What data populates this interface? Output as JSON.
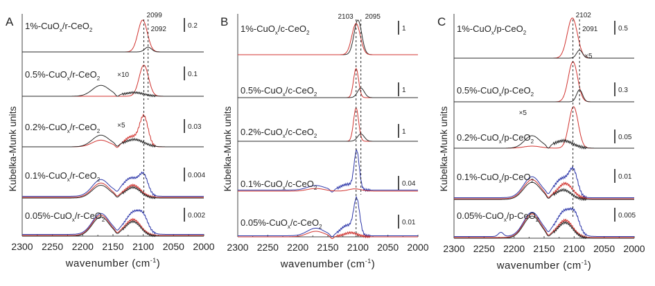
{
  "chart_data": [
    {
      "type": "line",
      "panel": "A",
      "xlabel": "wavenumber (cm⁻¹)",
      "xlabel_base": "wavenumber (cm",
      "xlabel_sup": "-1",
      "xlabel_end": ")",
      "ylabel": "Kubelka-Munk units",
      "xlim": [
        2300,
        2000
      ],
      "xticks": [
        2300,
        2250,
        2200,
        2150,
        2100,
        2050,
        2000
      ],
      "peak_markers": [
        {
          "value": 2099,
          "label": "2099"
        },
        {
          "value": 2092,
          "label": "2092"
        }
      ],
      "colors": {
        "red": "#d0322e",
        "black": "#2a2a2a",
        "blue": "#2b35a8"
      },
      "spectra": [
        {
          "sample": "1%-CuOx/r-CeO2",
          "label_main": "1%-CuO",
          "label_sub": "x",
          "label_mid": "/r-CeO",
          "label_sub2": "2",
          "scale_bar": "0.2",
          "multiplier": "",
          "series": [
            {
              "color": "red",
              "peaks": [
                {
                  "center": 2101,
                  "height": 1.0,
                  "width": 11
                }
              ]
            },
            {
              "color": "black",
              "peaks": [
                {
                  "center": 2092,
                  "height": 0.15,
                  "width": 8
                }
              ]
            }
          ]
        },
        {
          "sample": "0.5%-CuOx/r-CeO2",
          "label_main": "0.5%-CuO",
          "label_sub": "x",
          "label_mid": "/r-CeO",
          "label_sub2": "2",
          "scale_bar": "0.1",
          "multiplier": "×10",
          "series": [
            {
              "color": "red",
              "peaks": [
                {
                  "center": 2099,
                  "height": 1.0,
                  "width": 11
                }
              ]
            },
            {
              "color": "black",
              "peaks": [
                {
                  "center": 2170,
                  "height": 0.35,
                  "width": 20
                },
                {
                  "center": 2115,
                  "height": 0.12,
                  "width": 22
                }
              ]
            }
          ]
        },
        {
          "sample": "0.2%-CuOx/r-CeO2",
          "label_main": "0.2%-CuO",
          "label_sub": "x",
          "label_mid": "/r-CeO",
          "label_sub2": "2",
          "scale_bar": "0.03",
          "multiplier": "×5",
          "series": [
            {
              "color": "red",
              "peaks": [
                {
                  "center": 2170,
                  "height": 0.2,
                  "width": 20
                },
                {
                  "center": 2120,
                  "height": 0.3,
                  "width": 15
                },
                {
                  "center": 2099,
                  "height": 0.9,
                  "width": 10
                }
              ]
            },
            {
              "color": "black",
              "peaks": [
                {
                  "center": 2170,
                  "height": 0.35,
                  "width": 20
                },
                {
                  "center": 2115,
                  "height": 0.22,
                  "width": 22
                }
              ]
            }
          ]
        },
        {
          "sample": "0.1%-CuOx/r-CeO2",
          "label_main": "0.1%-CuO",
          "label_sub": "x",
          "label_mid": "/r-CeO",
          "label_sub2": "2",
          "scale_bar": "0.004",
          "multiplier": "",
          "series": [
            {
              "color": "blue",
              "peaks": [
                {
                  "center": 2170,
                  "height": 0.55,
                  "width": 20
                },
                {
                  "center": 2120,
                  "height": 0.6,
                  "width": 20
                },
                {
                  "center": 2099,
                  "height": 0.55,
                  "width": 10
                }
              ]
            },
            {
              "color": "red",
              "peaks": [
                {
                  "center": 2170,
                  "height": 0.47,
                  "width": 20
                },
                {
                  "center": 2117,
                  "height": 0.4,
                  "width": 18
                }
              ]
            },
            {
              "color": "black",
              "peaks": [
                {
                  "center": 2170,
                  "height": 0.42,
                  "width": 20
                },
                {
                  "center": 2117,
                  "height": 0.35,
                  "width": 18
                }
              ]
            }
          ]
        },
        {
          "sample": "0.05%-CuOx/r-CeO2",
          "label_main": "0.05%-CuO",
          "label_sub": "x",
          "label_mid": "/r-CeO",
          "label_sub2": "2",
          "scale_bar": "0.002",
          "multiplier": "",
          "series": [
            {
              "color": "blue",
              "peaks": [
                {
                  "center": 2170,
                  "height": 0.72,
                  "width": 20
                },
                {
                  "center": 2115,
                  "height": 0.78,
                  "width": 20
                },
                {
                  "center": 2099,
                  "height": 0.3,
                  "width": 10
                }
              ]
            },
            {
              "color": "red",
              "peaks": [
                {
                  "center": 2170,
                  "height": 0.7,
                  "width": 20
                },
                {
                  "center": 2117,
                  "height": 0.55,
                  "width": 18
                }
              ]
            },
            {
              "color": "black",
              "peaks": [
                {
                  "center": 2170,
                  "height": 0.66,
                  "width": 20
                },
                {
                  "center": 2117,
                  "height": 0.5,
                  "width": 18
                }
              ]
            }
          ]
        }
      ]
    },
    {
      "type": "line",
      "panel": "B",
      "xlabel": "wavenumber (cm⁻¹)",
      "xlabel_base": "wavenumber (cm",
      "xlabel_sup": "-1",
      "xlabel_end": ")",
      "ylabel": "Kubelka-Munk units",
      "xlim": [
        2300,
        2000
      ],
      "xticks": [
        2300,
        2250,
        2200,
        2150,
        2100,
        2050,
        2000
      ],
      "peak_markers": [
        {
          "value": 2103,
          "label": "2103"
        },
        {
          "value": 2095,
          "label": "2095"
        }
      ],
      "colors": {
        "red": "#d0322e",
        "black": "#2a2a2a",
        "blue": "#2b35a8"
      },
      "spectra": [
        {
          "sample": "1%-CuOx/c-CeO2",
          "label_main": "1%-CuO",
          "label_sub": "x",
          "label_mid": "/c-CeO",
          "label_sub2": "2",
          "scale_bar": "1",
          "multiplier": "",
          "series": [
            {
              "color": "black",
              "peaks": [
                {
                  "center": 2100,
                  "height": 1.0,
                  "width": 9
                }
              ]
            },
            {
              "color": "red",
              "peaks": [
                {
                  "center": 2103,
                  "height": 0.9,
                  "width": 10
                }
              ]
            }
          ]
        },
        {
          "sample": "0.5%-CuOx/c-CeO2",
          "label_main": "0.5%-CuO",
          "label_sub": "x",
          "label_mid": "/c-CeO",
          "label_sub2": "2",
          "scale_bar": "1",
          "multiplier": "",
          "series": [
            {
              "color": "red",
              "peaks": [
                {
                  "center": 2103,
                  "height": 1.0,
                  "width": 6
                }
              ]
            },
            {
              "color": "black",
              "peaks": [
                {
                  "center": 2095,
                  "height": 0.33,
                  "width": 8
                }
              ]
            }
          ]
        },
        {
          "sample": "0.2%-CuOx/c-CeO2",
          "label_main": "0.2%-CuO",
          "label_sub": "x",
          "label_mid": "/c-CeO",
          "label_sub2": "2",
          "scale_bar": "1",
          "multiplier": "",
          "series": [
            {
              "color": "red",
              "peaks": [
                {
                  "center": 2103,
                  "height": 1.0,
                  "width": 6
                }
              ]
            },
            {
              "color": "black",
              "peaks": [
                {
                  "center": 2095,
                  "height": 0.22,
                  "width": 8
                }
              ]
            }
          ]
        },
        {
          "sample": "0.1%-CuOx/c-CeO2",
          "label_main": "0.1%-CuO",
          "label_sub": "x",
          "label_mid": "/c-CeO",
          "label_sub2": "2",
          "scale_bar": "0.04",
          "multiplier": "",
          "series": [
            {
              "color": "blue",
              "peaks": [
                {
                  "center": 2170,
                  "height": 0.12,
                  "width": 20
                },
                {
                  "center": 2118,
                  "height": 0.15,
                  "width": 15
                },
                {
                  "center": 2102,
                  "height": 1.0,
                  "width": 6
                }
              ]
            },
            {
              "color": "red",
              "peaks": [
                {
                  "center": 2170,
                  "height": 0.07,
                  "width": 20
                },
                {
                  "center": 2105,
                  "height": 0.06,
                  "width": 15
                }
              ]
            }
          ]
        },
        {
          "sample": "0.05%-CuOx/c-CeO2",
          "label_main": "0.05%-CuO",
          "label_sub": "x",
          "label_mid": "/c-CeO",
          "label_sub2": "2",
          "scale_bar": "0.01",
          "multiplier": "",
          "series": [
            {
              "color": "blue",
              "peaks": [
                {
                  "center": 2170,
                  "height": 0.22,
                  "width": 20
                },
                {
                  "center": 2118,
                  "height": 0.3,
                  "width": 15
                },
                {
                  "center": 2102,
                  "height": 1.0,
                  "width": 7
                }
              ]
            },
            {
              "color": "red",
              "peaks": [
                {
                  "center": 2170,
                  "height": 0.16,
                  "width": 20
                },
                {
                  "center": 2112,
                  "height": 0.12,
                  "width": 16
                }
              ]
            }
          ]
        }
      ]
    },
    {
      "type": "line",
      "panel": "C",
      "xlabel": "wavenumber (cm⁻¹)",
      "xlabel_base": "wavenumber (cm",
      "xlabel_sup": "-1",
      "xlabel_end": ")",
      "ylabel": "Kubelka-Munk units",
      "xlim": [
        2300,
        2000
      ],
      "xticks": [
        2300,
        2250,
        2200,
        2150,
        2100,
        2050,
        2000
      ],
      "peak_markers": [
        {
          "value": 2102,
          "label": "2102"
        },
        {
          "value": 2091,
          "label": "2091"
        }
      ],
      "colors": {
        "red": "#d0322e",
        "black": "#2a2a2a",
        "blue": "#2b35a8"
      },
      "spectra": [
        {
          "sample": "1%-CuOx/p-CeO2",
          "label_main": "1%-CuO",
          "label_sub": "x",
          "label_mid": "/p-CeO",
          "label_sub2": "2",
          "scale_bar": "0.5",
          "multiplier": "",
          "series": [
            {
              "color": "red",
              "peaks": [
                {
                  "center": 2103,
                  "height": 1.0,
                  "width": 12
                }
              ]
            },
            {
              "color": "black",
              "peaks": [
                {
                  "center": 2091,
                  "height": 0.2,
                  "width": 7
                }
              ]
            }
          ]
        },
        {
          "sample": "0.5%-CuOx/p-CeO2",
          "label_main": "0.5%-CuO",
          "label_sub": "x",
          "label_mid": "/p-CeO",
          "label_sub2": "2",
          "scale_bar": "0.3",
          "multiplier": "×5",
          "series": [
            {
              "color": "red",
              "peaks": [
                {
                  "center": 2102,
                  "height": 1.0,
                  "width": 11
                }
              ]
            },
            {
              "color": "black",
              "peaks": [
                {
                  "center": 2091,
                  "height": 0.3,
                  "width": 7
                }
              ]
            }
          ]
        },
        {
          "sample": "0.2%-CuOx/p-CeO2",
          "label_main": "0.2%-CuO",
          "label_sub": "x",
          "label_mid": "/p-CeO",
          "label_sub2": "2",
          "scale_bar": "0.05",
          "multiplier": "×5",
          "series": [
            {
              "color": "red",
              "peaks": [
                {
                  "center": 2170,
                  "height": 0.05,
                  "width": 20
                },
                {
                  "center": 2101,
                  "height": 1.0,
                  "width": 11
                }
              ]
            },
            {
              "color": "black",
              "peaks": [
                {
                  "center": 2170,
                  "height": 0.3,
                  "width": 18
                },
                {
                  "center": 2118,
                  "height": 0.18,
                  "width": 22
                }
              ]
            }
          ]
        },
        {
          "sample": "0.1%-CuOx/p-CeO2",
          "label_main": "0.1%-CuO",
          "label_sub": "x",
          "label_mid": "/p-CeO",
          "label_sub2": "2",
          "scale_bar": "0.01",
          "multiplier": "",
          "series": [
            {
              "color": "blue",
              "peaks": [
                {
                  "center": 2170,
                  "height": 0.55,
                  "width": 20
                },
                {
                  "center": 2120,
                  "height": 0.5,
                  "width": 18
                },
                {
                  "center": 2101,
                  "height": 0.6,
                  "width": 10
                }
              ]
            },
            {
              "color": "red",
              "peaks": [
                {
                  "center": 2170,
                  "height": 0.5,
                  "width": 20
                },
                {
                  "center": 2115,
                  "height": 0.4,
                  "width": 18
                }
              ]
            },
            {
              "color": "black",
              "peaks": [
                {
                  "center": 2170,
                  "height": 0.45,
                  "width": 20
                },
                {
                  "center": 2118,
                  "height": 0.25,
                  "width": 18
                }
              ]
            }
          ]
        },
        {
          "sample": "0.05%-CuOx/p-CeO2",
          "label_main": "0.05%-CuO",
          "label_sub": "x",
          "label_mid": "/p-CeO",
          "label_sub2": "2",
          "scale_bar": "0.005",
          "multiplier": "",
          "series": [
            {
              "color": "blue",
              "peaks": [
                {
                  "center": 2222,
                  "height": 0.12,
                  "width": 6
                },
                {
                  "center": 2170,
                  "height": 0.7,
                  "width": 20
                },
                {
                  "center": 2115,
                  "height": 0.75,
                  "width": 20
                },
                {
                  "center": 2098,
                  "height": 0.35,
                  "width": 10
                }
              ]
            },
            {
              "color": "red",
              "peaks": [
                {
                  "center": 2170,
                  "height": 0.68,
                  "width": 20
                },
                {
                  "center": 2115,
                  "height": 0.5,
                  "width": 18
                }
              ]
            },
            {
              "color": "black",
              "peaks": [
                {
                  "center": 2170,
                  "height": 0.64,
                  "width": 20
                },
                {
                  "center": 2115,
                  "height": 0.45,
                  "width": 18
                }
              ]
            }
          ]
        }
      ]
    }
  ]
}
